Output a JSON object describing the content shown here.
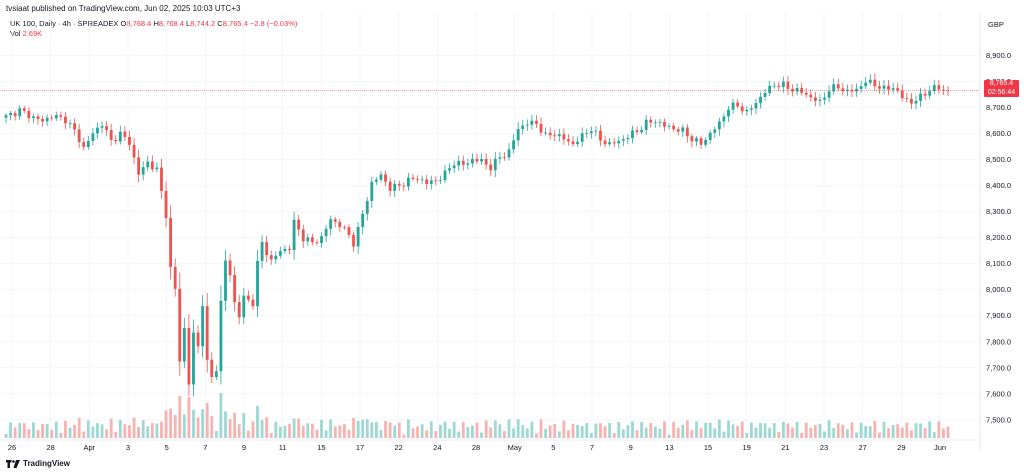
{
  "header": {
    "published": "tvsiaat published on TradingView.com, Jun 02, 2025 10:03 UTC+3",
    "symbol_line": "UK 100, Daily · 4h · SPREADEX",
    "ohlc": [
      {
        "label": "O",
        "value": "8,768.4"
      },
      {
        "label": "H",
        "value": "8,768.4"
      },
      {
        "label": "L",
        "value": "8,744.2"
      },
      {
        "label": "C",
        "value": "8,765.4"
      }
    ],
    "change": "−2.8 (−0.03%)",
    "vol_label": "Vol",
    "vol_value": "2.69K"
  },
  "currency": "GBP",
  "price_tag": {
    "price": "8,765.4",
    "countdown": "02:56:44"
  },
  "footer": {
    "brand": "TradingView"
  },
  "colors": {
    "up": "#26a69a",
    "down": "#ef5350",
    "vol_up": "#9fd7d2",
    "vol_down": "#f7b3b1",
    "last_line": "#f23645"
  },
  "chart_data": {
    "type": "candlestick",
    "timeframe": "4h",
    "x_tick_labels": [
      "26",
      "28",
      "Apr",
      "3",
      "5",
      "7",
      "9",
      "11",
      "15",
      "17",
      "22",
      "24",
      "28",
      "May",
      "5",
      "7",
      "9",
      "13",
      "15",
      "19",
      "21",
      "23",
      "27",
      "29",
      "Jun"
    ],
    "y_tick_labels": [
      "8,900.0",
      "8,800.0",
      "8,700.0",
      "8,600.0",
      "8,500.0",
      "8,400.0",
      "8,300.0",
      "8,200.0",
      "8,100.0",
      "8,000.0",
      "7,900.0",
      "7,800.0",
      "7,700.0",
      "7,600.0",
      "7,500.0"
    ],
    "y_ticks": [
      8900,
      8800,
      8700,
      8600,
      8500,
      8400,
      8300,
      8200,
      8100,
      8000,
      7900,
      7800,
      7700,
      7600,
      7500
    ],
    "ylim": [
      7430,
      8960
    ],
    "last_price": 8765.4,
    "close_path": [
      [
        0,
        8665
      ],
      [
        3,
        8690
      ],
      [
        6,
        8662
      ],
      [
        8,
        8648
      ],
      [
        10,
        8668
      ],
      [
        13,
        8655
      ],
      [
        15,
        8610
      ],
      [
        17,
        8545
      ],
      [
        19,
        8600
      ],
      [
        21,
        8640
      ],
      [
        23,
        8570
      ],
      [
        25,
        8600
      ],
      [
        27,
        8565
      ],
      [
        29,
        8445
      ],
      [
        31,
        8490
      ],
      [
        33,
        8460
      ],
      [
        35,
        8290
      ],
      [
        36,
        8080
      ],
      [
        37,
        8000
      ],
      [
        38,
        7730
      ],
      [
        39,
        7850
      ],
      [
        40,
        7640
      ],
      [
        41,
        7830
      ],
      [
        42,
        7780
      ],
      [
        43,
        7950
      ],
      [
        44,
        7720
      ],
      [
        45,
        7660
      ],
      [
        46,
        7700
      ],
      [
        47,
        7950
      ],
      [
        48,
        8110
      ],
      [
        49,
        8060
      ],
      [
        50,
        7950
      ],
      [
        51,
        7900
      ],
      [
        52,
        7970
      ],
      [
        54,
        7950
      ],
      [
        55,
        8100
      ],
      [
        56,
        8180
      ],
      [
        58,
        8110
      ],
      [
        60,
        8150
      ],
      [
        62,
        8160
      ],
      [
        63,
        8260
      ],
      [
        65,
        8200
      ],
      [
        67,
        8180
      ],
      [
        69,
        8200
      ],
      [
        71,
        8270
      ],
      [
        73,
        8250
      ],
      [
        75,
        8210
      ],
      [
        76,
        8180
      ],
      [
        77,
        8230
      ],
      [
        78,
        8290
      ],
      [
        80,
        8410
      ],
      [
        82,
        8440
      ],
      [
        84,
        8390
      ],
      [
        86,
        8400
      ],
      [
        88,
        8420
      ],
      [
        90,
        8430
      ],
      [
        92,
        8410
      ],
      [
        94,
        8420
      ],
      [
        96,
        8445
      ],
      [
        98,
        8490
      ],
      [
        100,
        8480
      ],
      [
        102,
        8500
      ],
      [
        104,
        8495
      ],
      [
        106,
        8470
      ],
      [
        108,
        8510
      ],
      [
        110,
        8530
      ],
      [
        112,
        8620
      ],
      [
        114,
        8640
      ],
      [
        116,
        8640
      ],
      [
        118,
        8590
      ],
      [
        120,
        8600
      ],
      [
        122,
        8580
      ],
      [
        124,
        8560
      ],
      [
        126,
        8590
      ],
      [
        128,
        8620
      ],
      [
        130,
        8575
      ],
      [
        132,
        8560
      ],
      [
        134,
        8570
      ],
      [
        136,
        8590
      ],
      [
        138,
        8610
      ],
      [
        140,
        8640
      ],
      [
        142,
        8650
      ],
      [
        144,
        8630
      ],
      [
        146,
        8620
      ],
      [
        148,
        8610
      ],
      [
        150,
        8580
      ],
      [
        152,
        8560
      ],
      [
        154,
        8600
      ],
      [
        156,
        8640
      ],
      [
        158,
        8700
      ],
      [
        160,
        8710
      ],
      [
        162,
        8680
      ],
      [
        164,
        8720
      ],
      [
        166,
        8760
      ],
      [
        168,
        8790
      ],
      [
        170,
        8785
      ],
      [
        172,
        8770
      ],
      [
        174,
        8760
      ],
      [
        176,
        8740
      ],
      [
        178,
        8720
      ],
      [
        180,
        8770
      ],
      [
        182,
        8780
      ],
      [
        184,
        8760
      ],
      [
        186,
        8770
      ],
      [
        188,
        8800
      ],
      [
        190,
        8790
      ],
      [
        192,
        8770
      ],
      [
        194,
        8780
      ],
      [
        196,
        8740
      ],
      [
        198,
        8720
      ],
      [
        200,
        8740
      ],
      [
        202,
        8770
      ],
      [
        204,
        8775
      ],
      [
        206,
        8765
      ]
    ],
    "volume_scale": [
      0,
      100
    ]
  }
}
